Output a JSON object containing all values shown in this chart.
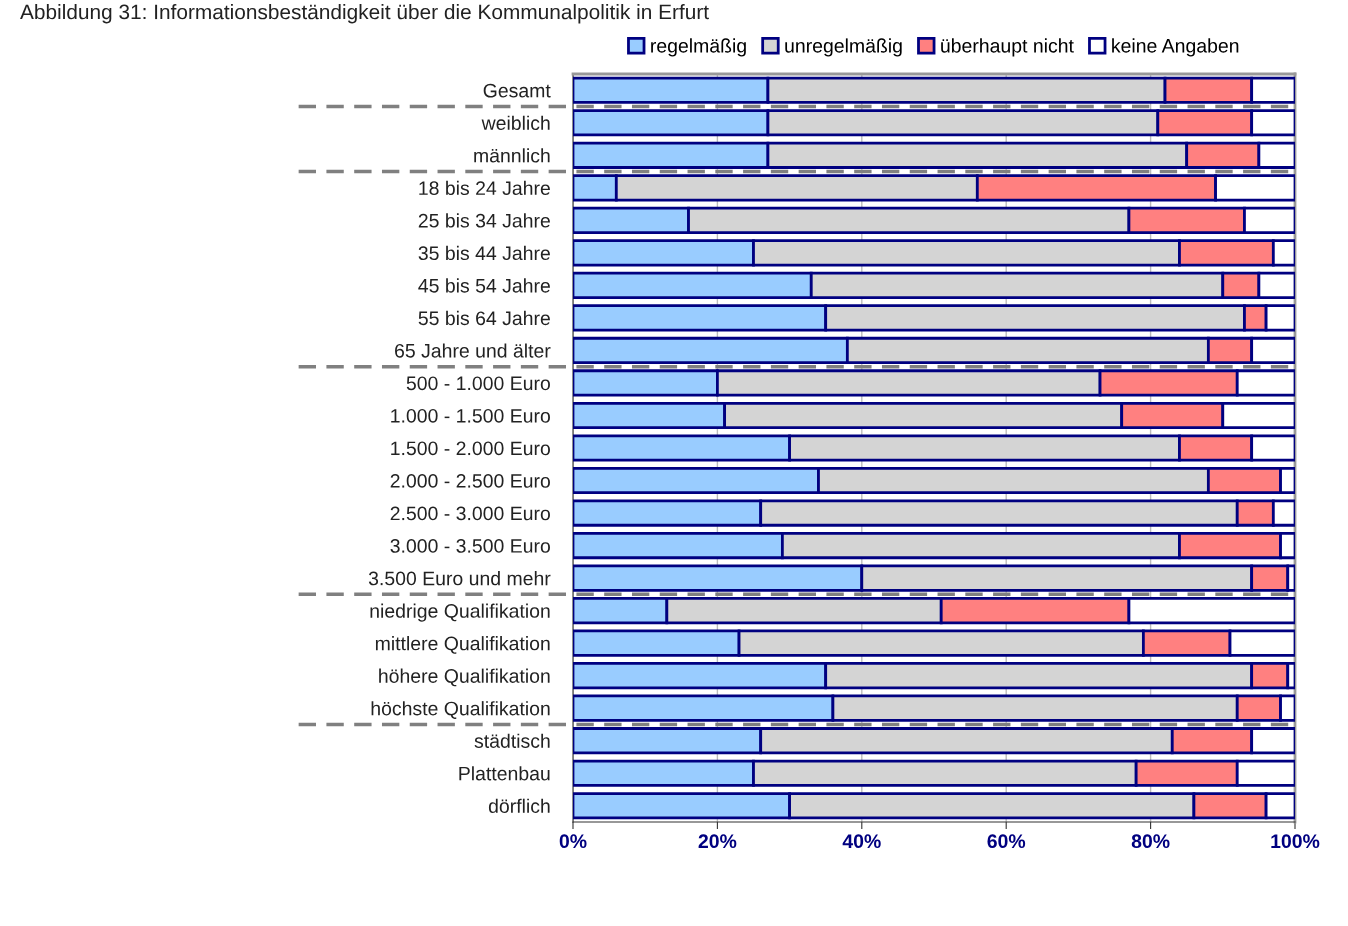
{
  "chart_data": {
    "type": "bar",
    "orientation": "horizontal",
    "stacked": true,
    "title": "Abbildung 31: Informationsbeständigkeit über die Kommunalpolitik in Erfurt",
    "categories": [
      "Gesamt",
      "weiblich",
      "männlich",
      "18 bis 24 Jahre",
      "25 bis 34 Jahre",
      "35 bis 44 Jahre",
      "45 bis 54 Jahre",
      "55 bis 64 Jahre",
      "65 Jahre und älter",
      "500 - 1.000 Euro",
      "1.000 - 1.500 Euro",
      "1.500 - 2.000 Euro",
      "2.000 - 2.500 Euro",
      "2.500 - 3.000 Euro",
      "3.000 - 3.500 Euro",
      "3.500 Euro und mehr",
      "niedrige Qualifikation",
      "mittlere Qualifikation",
      "höhere Qualifikation",
      "höchste Qualifikation",
      "städtisch",
      "Plattenbau",
      "dörflich"
    ],
    "series": [
      {
        "name": "regelmäßig",
        "color": "#99ccff",
        "values": [
          27,
          27,
          27,
          6,
          16,
          25,
          33,
          35,
          38,
          20,
          21,
          30,
          34,
          26,
          29,
          40,
          13,
          23,
          35,
          36,
          26,
          25,
          30
        ]
      },
      {
        "name": "unregelmäßig",
        "color": "#d4d4d4",
        "values": [
          55,
          54,
          58,
          50,
          61,
          59,
          57,
          58,
          50,
          53,
          55,
          54,
          54,
          66,
          55,
          54,
          38,
          56,
          59,
          56,
          57,
          53,
          56
        ]
      },
      {
        "name": "überhaupt nicht",
        "color": "#ff8080",
        "values": [
          12,
          13,
          10,
          33,
          16,
          13,
          5,
          3,
          6,
          19,
          14,
          10,
          10,
          5,
          14,
          5,
          26,
          12,
          5,
          6,
          11,
          14,
          10
        ]
      },
      {
        "name": "keine Angaben",
        "color": "#ffffff",
        "values": [
          6,
          6,
          5,
          11,
          7,
          3,
          5,
          4,
          6,
          8,
          10,
          6,
          2,
          3,
          2,
          1,
          23,
          9,
          1,
          2,
          6,
          8,
          4
        ]
      }
    ],
    "xlim": [
      0,
      100
    ],
    "xticks": [
      {
        "value": 0,
        "label": "0%"
      },
      {
        "value": 20,
        "label": "20%"
      },
      {
        "value": 40,
        "label": "40%"
      },
      {
        "value": 60,
        "label": "60%"
      },
      {
        "value": 80,
        "label": "80%"
      },
      {
        "value": 100,
        "label": "100%"
      }
    ],
    "grid": "x",
    "legend": "top",
    "ref_lines": [
      {
        "axis": "y",
        "value": "Gesamt",
        "line_style": "dashed",
        "color": "#808080"
      },
      {
        "axis": "y",
        "value": "männlich",
        "line_style": "dashed",
        "color": "#808080"
      },
      {
        "axis": "y",
        "value": "65 Jahre und älter",
        "line_style": "dashed",
        "color": "#808080"
      },
      {
        "axis": "y",
        "value": "3.500 Euro und mehr",
        "line_style": "dashed",
        "color": "#808080"
      },
      {
        "axis": "y",
        "value": "höchste Qualifikation",
        "line_style": "dashed",
        "color": "#808080"
      }
    ]
  }
}
